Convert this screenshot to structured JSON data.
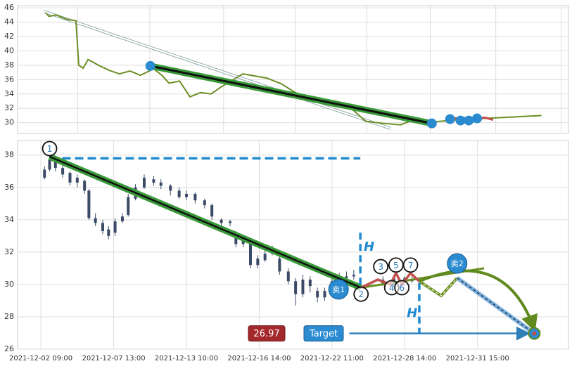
{
  "chart_data": [
    {
      "type": "line",
      "xlim": [
        0,
        100
      ],
      "ylim": [
        28.5,
        46.3
      ],
      "yticks": [
        30,
        32,
        34,
        36,
        38,
        40,
        42,
        44,
        46
      ],
      "xgrid": [
        10.9,
        24.0,
        37.4,
        50.4,
        63.4,
        74.9,
        86.8,
        98.7
      ],
      "grid": true,
      "series": [
        {
          "color": "#6b8e23",
          "x": [
            5.1,
            5.7,
            7.0,
            8.9,
            10.6,
            11.1,
            11.9,
            12.8,
            14.7,
            16.6,
            18.5,
            20.4,
            22.3,
            24.7,
            26.2,
            27.5,
            29.4,
            31.3,
            33.2,
            35.1,
            37.0,
            40.9,
            45.3,
            47.9,
            50.4,
            53.0,
            55.6,
            58.1,
            60.7,
            63.2,
            66.4,
            69.5,
            72.2,
            75.3,
            79.8,
            84.9,
            90.0,
            95.1
          ],
          "values": [
            45.3,
            44.8,
            45.0,
            44.4,
            44.2,
            38.0,
            37.6,
            38.8,
            38.0,
            37.3,
            36.8,
            37.2,
            36.6,
            37.5,
            36.6,
            35.5,
            35.8,
            33.6,
            34.2,
            34.0,
            35.0,
            36.8,
            36.2,
            35.4,
            34.2,
            33.5,
            32.6,
            32.2,
            31.9,
            30.2,
            29.9,
            29.7,
            30.5,
            30.1,
            30.4,
            30.6,
            30.8,
            31.0
          ]
        }
      ],
      "annotations": {
        "channel": {
          "x": [
            4.7,
            67.7
          ],
          "y": [
            45.5,
            29.2
          ]
        },
        "trend": {
          "x": [
            24.1,
            75.2
          ],
          "y": [
            37.9,
            29.9
          ]
        },
        "red": {
          "x": [
            78.5,
            84.9,
            86.3
          ],
          "y": [
            30.6,
            30.7,
            30.4
          ]
        },
        "dots": {
          "x": [
            24.1,
            75.2,
            78.5,
            80.4,
            81.9,
            83.4
          ],
          "y": [
            37.9,
            29.9,
            30.5,
            30.3,
            30.3,
            30.6
          ]
        }
      }
    },
    {
      "type": "candlestick",
      "xlim": [
        -0.32,
        7.25
      ],
      "ylim": [
        26,
        38.9
      ],
      "yticks": [
        26,
        28,
        30,
        32,
        34,
        36,
        38
      ],
      "grid": true,
      "color": "#3b4a66",
      "xticks": [
        {
          "value": 0,
          "label": "2021-12-02 09:00"
        },
        {
          "value": 1,
          "label": "2021-12-07 13:00"
        },
        {
          "value": 2,
          "label": "2021-12-13 10:00"
        },
        {
          "value": 3,
          "label": "2021-12-16 14:00"
        },
        {
          "value": 4,
          "label": "2021-12-22 11:00"
        },
        {
          "value": 5,
          "label": "2021-12-28 14:00"
        },
        {
          "value": 6,
          "label": "2021-12-31 15:00"
        }
      ],
      "x": [
        0.05,
        0.12,
        0.2,
        0.3,
        0.4,
        0.5,
        0.6,
        0.66,
        0.75,
        0.85,
        0.93,
        1.02,
        1.12,
        1.2,
        1.3,
        1.42,
        1.55,
        1.65,
        1.78,
        1.9,
        2.0,
        2.12,
        2.25,
        2.35,
        2.48,
        2.6,
        2.68,
        2.78,
        2.88,
        2.98,
        3.08,
        3.18,
        3.28,
        3.4,
        3.5,
        3.6,
        3.7,
        3.8,
        3.9,
        4.0,
        4.1,
        4.2,
        4.3,
        4.7,
        4.85,
        5.0,
        5.1
      ],
      "open": [
        36.6,
        37.1,
        37.6,
        37.2,
        36.9,
        36.3,
        36.4,
        35.8,
        34.1,
        33.8,
        33.4,
        33.2,
        33.9,
        34.3,
        35.3,
        36.0,
        36.5,
        36.3,
        36.1,
        35.8,
        35.4,
        35.6,
        35.2,
        34.9,
        34.0,
        33.8,
        33.2,
        32.5,
        32.6,
        31.2,
        31.5,
        31.9,
        31.6,
        30.8,
        30.2,
        29.4,
        30.3,
        29.6,
        29.2,
        29.6,
        30.2,
        30.4,
        30.5,
        30.3,
        30.0,
        30.4,
        30.2
      ],
      "close": [
        37.1,
        37.7,
        37.2,
        36.8,
        36.3,
        36.6,
        35.8,
        34.1,
        33.8,
        33.3,
        33.0,
        33.9,
        34.2,
        35.4,
        36.0,
        36.6,
        36.3,
        36.1,
        35.8,
        35.4,
        35.6,
        35.2,
        34.9,
        34.2,
        33.8,
        33.9,
        32.5,
        32.7,
        31.2,
        31.6,
        31.9,
        32.2,
        30.8,
        30.2,
        29.4,
        30.3,
        29.9,
        29.2,
        29.6,
        30.2,
        30.4,
        30.5,
        30.6,
        30.0,
        30.4,
        30.2,
        30.3
      ],
      "high": [
        37.3,
        38.0,
        37.8,
        37.4,
        37.0,
        36.8,
        36.5,
        35.9,
        34.4,
        34.0,
        33.6,
        34.1,
        34.4,
        35.6,
        36.2,
        36.8,
        36.7,
        36.5,
        36.2,
        36.0,
        35.8,
        35.7,
        35.3,
        35.0,
        34.1,
        34.0,
        33.3,
        33.0,
        32.8,
        31.8,
        32.3,
        32.4,
        31.8,
        31.0,
        30.4,
        30.6,
        30.5,
        29.8,
        29.8,
        30.4,
        30.7,
        30.8,
        30.9,
        30.5,
        30.6,
        30.5,
        30.5
      ],
      "low": [
        36.5,
        37.0,
        37.0,
        36.6,
        36.1,
        36.0,
        35.6,
        34.0,
        33.6,
        33.1,
        32.8,
        33.0,
        33.8,
        34.2,
        35.2,
        35.9,
        36.1,
        35.9,
        35.5,
        35.3,
        35.2,
        35.0,
        34.7,
        34.0,
        33.6,
        33.6,
        32.3,
        32.3,
        31.0,
        31.0,
        31.4,
        31.8,
        30.6,
        30.0,
        28.7,
        29.2,
        29.5,
        28.9,
        29.0,
        29.5,
        30.0,
        30.2,
        30.3,
        29.9,
        29.8,
        30.0,
        30.1
      ],
      "annotations": {
        "level": {
          "x": [
            0.12,
            4.39
          ],
          "y": [
            37.8,
            37.8
          ]
        },
        "trend": {
          "x": [
            0.12,
            4.4
          ],
          "y": [
            37.9,
            29.8
          ]
        },
        "forecast": {
          "x": [
            4.4,
            6.09
          ],
          "y": [
            29.8,
            31.0
          ]
        },
        "zigzag": {
          "x": [
            4.4,
            4.63,
            4.8,
            4.88,
            4.96,
            5.08,
            5.2
          ],
          "y": [
            29.8,
            30.3,
            30.0,
            30.7,
            30.0,
            30.7,
            30.2
          ]
        },
        "dashed_path": {
          "x": [
            5.2,
            5.5,
            5.72
          ],
          "y": [
            30.2,
            29.3,
            30.4
          ]
        },
        "to_target": {
          "x": [
            5.72,
            6.78
          ],
          "y": [
            30.4,
            26.97
          ]
        },
        "arc": {
          "x": [
            5.2,
            6.78
          ],
          "y": [
            30.2,
            26.97
          ]
        },
        "h_lines": [
          {
            "x": [
              4.39,
              4.39
            ],
            "y": [
              33.2,
              29.8
            ]
          },
          {
            "x": [
              5.2,
              5.2
            ],
            "y": [
              30.1,
              26.97
            ]
          }
        ],
        "h_labels": [
          {
            "label": "H",
            "x": 4.51,
            "y": 32.3
          },
          {
            "label": "H",
            "x": 5.1,
            "y": 28.2
          }
        ],
        "points": [
          {
            "label": "1",
            "x": 0.12,
            "y": 38.4
          },
          {
            "label": "2",
            "x": 4.4,
            "y": 29.4
          },
          {
            "label": "3",
            "x": 4.67,
            "y": 31.1
          },
          {
            "label": "4",
            "x": 4.82,
            "y": 29.8
          },
          {
            "label": "5",
            "x": 4.88,
            "y": 31.2
          },
          {
            "label": "6",
            "x": 4.96,
            "y": 29.8
          },
          {
            "label": "7",
            "x": 5.08,
            "y": 31.2
          }
        ],
        "sell": [
          {
            "label": "卖1",
            "x": 4.09,
            "y": 29.7
          },
          {
            "label": "卖2",
            "x": 5.72,
            "y": 31.3
          }
        ],
        "target": {
          "label": "Target",
          "value": 26.97,
          "x": [
            4.24,
            6.78
          ]
        }
      }
    }
  ]
}
